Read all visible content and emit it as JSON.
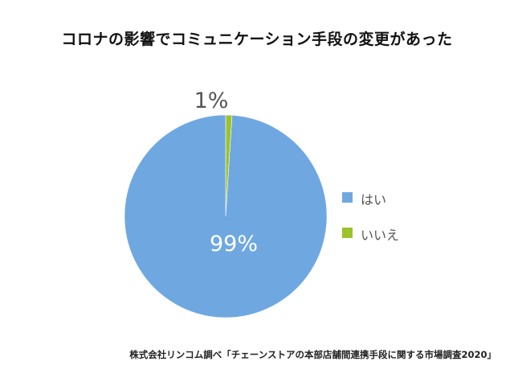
{
  "chart_data": {
    "type": "pie",
    "title": "コロナの影響でコミュニケーション手段の変更があった",
    "categories": [
      "はい",
      "いいえ"
    ],
    "values": [
      99,
      1
    ],
    "labels": [
      "99%",
      "1%"
    ],
    "colors": [
      "#6fa8e0",
      "#9dc22b"
    ],
    "legend_position": "right",
    "source": "株式会社リンコム調べ「チェーンストアの本部店舗間連携手段に関する市場調査2020」"
  }
}
